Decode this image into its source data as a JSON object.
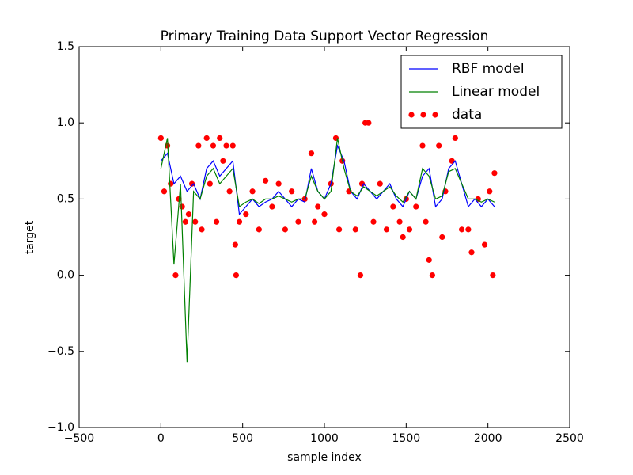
{
  "chart_data": {
    "type": "line",
    "title": "Primary Training Data Support Vector Regression",
    "xlabel": "sample index",
    "ylabel": "target",
    "xlim": [
      -500,
      2500
    ],
    "ylim": [
      -1.0,
      1.5
    ],
    "xticks": [
      {
        "value": -500,
        "label": "−500"
      },
      0,
      500,
      1000,
      1500,
      2000,
      2500
    ],
    "yticks": [
      {
        "value": -1.0,
        "label": "−1.0"
      },
      {
        "value": -0.5,
        "label": "−0.5"
      },
      {
        "value": 0.0,
        "label": "0.0"
      },
      {
        "value": 0.5,
        "label": "0.5"
      },
      {
        "value": 1.0,
        "label": "1.0"
      },
      {
        "value": 1.5,
        "label": "1.5"
      }
    ],
    "legend": "upper right",
    "x": [
      0,
      40,
      80,
      120,
      160,
      200,
      240,
      280,
      320,
      360,
      400,
      440,
      480,
      520,
      560,
      600,
      640,
      680,
      720,
      760,
      800,
      840,
      880,
      920,
      960,
      1000,
      1040,
      1080,
      1120,
      1160,
      1200,
      1240,
      1280,
      1320,
      1360,
      1400,
      1440,
      1480,
      1520,
      1560,
      1600,
      1640,
      1680,
      1720,
      1760,
      1800,
      1840,
      1880,
      1920,
      1960,
      2000,
      2040
    ],
    "series": [
      {
        "name": "RBF model",
        "type": "line",
        "color": "#0000ff",
        "values": [
          0.75,
          0.8,
          0.6,
          0.65,
          0.55,
          0.6,
          0.5,
          0.7,
          0.75,
          0.65,
          0.7,
          0.75,
          0.4,
          0.45,
          0.5,
          0.45,
          0.48,
          0.5,
          0.55,
          0.5,
          0.45,
          0.5,
          0.48,
          0.7,
          0.55,
          0.5,
          0.6,
          0.85,
          0.75,
          0.55,
          0.5,
          0.6,
          0.55,
          0.5,
          0.55,
          0.6,
          0.5,
          0.45,
          0.55,
          0.5,
          0.65,
          0.7,
          0.45,
          0.5,
          0.7,
          0.75,
          0.6,
          0.45,
          0.5,
          0.45,
          0.5,
          0.45
        ]
      },
      {
        "name": "Linear model",
        "type": "line",
        "color": "#008000",
        "values": [
          0.7,
          0.9,
          0.07,
          0.6,
          -0.57,
          0.55,
          0.5,
          0.65,
          0.7,
          0.6,
          0.65,
          0.7,
          0.45,
          0.48,
          0.5,
          0.47,
          0.5,
          0.5,
          0.52,
          0.5,
          0.48,
          0.5,
          0.5,
          0.65,
          0.55,
          0.5,
          0.55,
          0.9,
          0.7,
          0.55,
          0.52,
          0.58,
          0.55,
          0.52,
          0.55,
          0.58,
          0.52,
          0.48,
          0.55,
          0.5,
          0.7,
          0.65,
          0.5,
          0.52,
          0.68,
          0.7,
          0.6,
          0.5,
          0.5,
          0.48,
          0.5,
          0.48
        ]
      },
      {
        "name": "data",
        "type": "scatter",
        "color": "#ff0000",
        "x": [
          0,
          20,
          40,
          60,
          90,
          110,
          130,
          150,
          170,
          190,
          210,
          230,
          250,
          280,
          300,
          320,
          340,
          360,
          380,
          400,
          420,
          440,
          455,
          460,
          480,
          520,
          560,
          600,
          640,
          680,
          720,
          760,
          800,
          840,
          880,
          920,
          940,
          960,
          1000,
          1040,
          1070,
          1090,
          1110,
          1150,
          1190,
          1220,
          1230,
          1250,
          1270,
          1300,
          1340,
          1380,
          1420,
          1460,
          1480,
          1500,
          1520,
          1560,
          1600,
          1620,
          1640,
          1660,
          1700,
          1720,
          1740,
          1780,
          1800,
          1840,
          1880,
          1900,
          1940,
          1980,
          2010,
          2030,
          2040
        ],
        "values": [
          0.9,
          0.55,
          0.85,
          0.6,
          0.0,
          0.5,
          0.45,
          0.35,
          0.4,
          0.6,
          0.35,
          0.85,
          0.3,
          0.9,
          0.6,
          0.85,
          0.35,
          0.9,
          0.75,
          0.85,
          0.55,
          0.85,
          0.2,
          0.0,
          0.35,
          0.4,
          0.55,
          0.3,
          0.62,
          0.45,
          0.6,
          0.3,
          0.55,
          0.35,
          0.5,
          0.8,
          0.35,
          0.45,
          0.4,
          0.6,
          0.9,
          0.3,
          0.75,
          0.55,
          0.3,
          0.0,
          0.6,
          1.0,
          1.0,
          0.35,
          0.6,
          0.3,
          0.45,
          0.35,
          0.25,
          0.5,
          0.3,
          0.45,
          0.85,
          0.35,
          0.1,
          0.0,
          0.85,
          0.25,
          0.55,
          0.75,
          0.9,
          0.3,
          0.3,
          0.15,
          0.5,
          0.2,
          0.55,
          0.0,
          0.67
        ]
      }
    ]
  }
}
